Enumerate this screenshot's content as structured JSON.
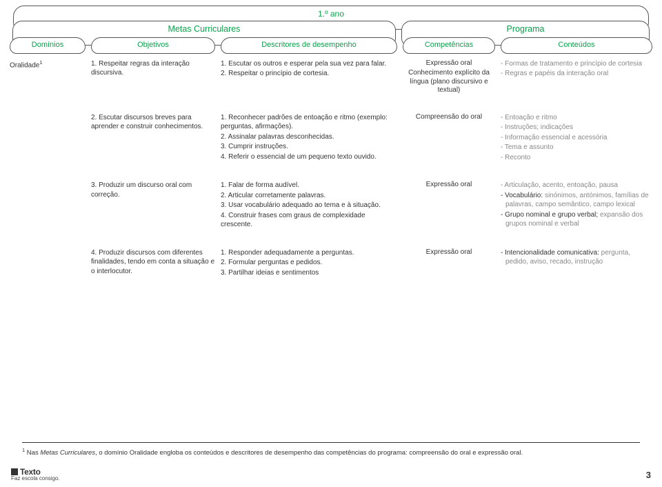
{
  "year": "1.º ano",
  "headers": {
    "metas": "Metas Curriculares",
    "programa": "Programa",
    "dominios": "Domínios",
    "objetivos": "Objetivos",
    "descritores": "Descritores de desempenho",
    "competencias": "Competências",
    "conteudos": "Conteúdos"
  },
  "rows": [
    {
      "dominio": "Oralidade",
      "dominio_sup": "1",
      "objetivo": "1. Respeitar regras da interação discursiva.",
      "descritores": [
        "1. Escutar os outros e esperar pela sua vez para falar.",
        "2. Respeitar o princípio de cortesia."
      ],
      "competencia": [
        "Expressão oral",
        "Conhecimento explícito da língua (plano discursivo e textual)"
      ],
      "conteudos": [
        {
          "plain": "- Formas de tratamento e princípio de cortesia"
        },
        {
          "plain": "- Regras e papéis da interação oral"
        }
      ]
    },
    {
      "dominio": "",
      "objetivo": "2. Escutar discursos breves para aprender e construir conhecimentos.",
      "descritores": [
        "1. Reconhecer padrões de entoação e ritmo (exemplo: perguntas, afirmações).",
        "2. Assinalar palavras desconhecidas.",
        "3. Cumprir instruções.",
        "4. Referir o essencial de um pequeno texto ouvido."
      ],
      "competencia": [
        "Compreensão do oral"
      ],
      "conteudos": [
        {
          "plain": "- Entoação e ritmo"
        },
        {
          "plain": "- Instruções; indicações"
        },
        {
          "plain": "- Informação essencial e acessória"
        },
        {
          "plain": "- Tema e assunto"
        },
        {
          "plain": "- Reconto"
        }
      ]
    },
    {
      "dominio": "",
      "objetivo": "3. Produzir um discurso oral com correção.",
      "descritores": [
        "1. Falar de forma audível.",
        "2. Articular corretamente palavras.",
        "3. Usar vocabulário adequado ao tema e à situação.",
        "4. Construir frases com graus de complexidade crescente."
      ],
      "competencia": [
        "Expressão oral"
      ],
      "conteudos": [
        {
          "plain": "- Articulação, acento, entoação, pausa"
        },
        {
          "bold": "- Vocabulário: ",
          "rest": "sinónimos, antónimos, famílias de palavras, campo semântico, campo lexical"
        },
        {
          "bold": "- Grupo nominal e grupo verbal; ",
          "rest": "expansão dos grupos nominal e verbal"
        }
      ]
    },
    {
      "dominio": "",
      "objetivo": "4. Produzir discursos com diferentes finalidades, tendo em conta a situação e o interlocutor.",
      "descritores": [
        "1. Responder adequadamente a perguntas.",
        "2. Formular perguntas e pedidos.",
        "3. Partilhar ideias e sentimentos"
      ],
      "competencia": [
        "Expressão oral"
      ],
      "conteudos": [
        {
          "bold": "- Intencionalidade comunicativa: ",
          "rest": "pergunta, pedido, aviso, recado, instrução"
        }
      ]
    }
  ],
  "footnote_sup": "1",
  "footnote_pre": " Nas ",
  "footnote_i": "Metas Curriculares",
  "footnote_mid": ", o domínio ",
  "footnote_b": "Oralidade",
  "footnote_rest": " engloba os conteúdos e descritores de desempenho das competências do programa: compreensão do oral e expressão oral.",
  "footer": {
    "brand": "Texto",
    "tag": "Faz escola consigo.",
    "page": "3"
  },
  "colors": {
    "accent": "#0aa14b",
    "border": "#555555",
    "muted": "#888888"
  }
}
